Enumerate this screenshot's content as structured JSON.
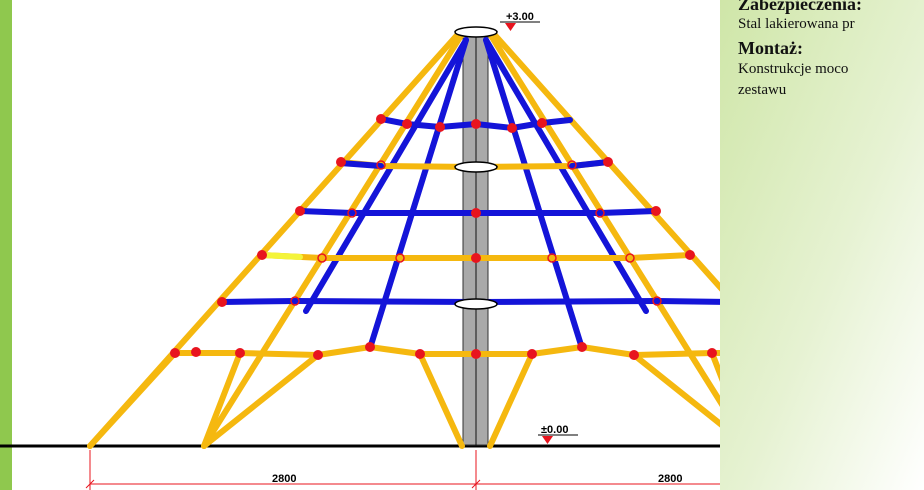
{
  "info": {
    "heading_security": "Zabezpieczenia:",
    "security_text": "Stal lakierowana pr",
    "heading_mount": "Montaż:",
    "mount_text": "Konstrukcje moco",
    "mount_text_2": " zestawu"
  },
  "levels": {
    "top": "+3.00",
    "ground": "±0.00"
  },
  "dimensions": {
    "left": "2800",
    "right": "2800"
  },
  "colors": {
    "rope_yellow": "#f5b80f",
    "rope_blue": "#1414d8",
    "connector_red": "#e8141e",
    "mast_gray": "#a9a9a9",
    "accent_green": "#8fc84e",
    "highlight_yellow": "#f4f43a"
  }
}
